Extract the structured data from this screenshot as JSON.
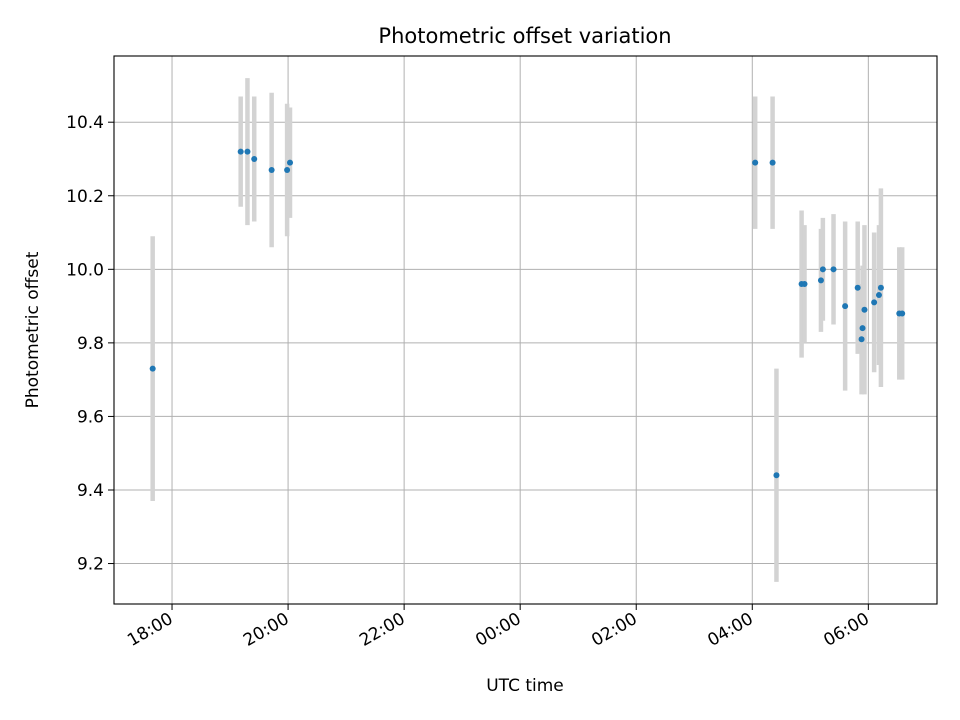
{
  "chart_data": {
    "type": "scatter",
    "title": "Photometric offset variation",
    "xlabel": "UTC time",
    "ylabel": "Photometric offset",
    "xlim": [
      "17:00",
      "07:11"
    ],
    "ylim": [
      9.09,
      10.58
    ],
    "x_ticks": [
      "18:00",
      "20:00",
      "22:00",
      "00:00",
      "02:00",
      "04:00",
      "06:00"
    ],
    "y_ticks": [
      "9.2",
      "9.4",
      "9.6",
      "9.8",
      "10.0",
      "10.2",
      "10.4"
    ],
    "grid": true,
    "colors": {
      "point": "#1f77b4",
      "errorbar": "#d3d3d3",
      "grid": "#b0b0b0"
    },
    "points": [
      {
        "x": "17:40",
        "y": 9.73,
        "err": 0.36
      },
      {
        "x": "19:11",
        "y": 10.32,
        "err": 0.15
      },
      {
        "x": "19:18",
        "y": 10.32,
        "err": 0.2
      },
      {
        "x": "19:25",
        "y": 10.3,
        "err": 0.17
      },
      {
        "x": "19:43",
        "y": 10.27,
        "err": 0.21
      },
      {
        "x": "19:59",
        "y": 10.27,
        "err": 0.18
      },
      {
        "x": "20:02",
        "y": 10.29,
        "err": 0.15
      },
      {
        "x": "04:03",
        "y": 10.29,
        "err": 0.18
      },
      {
        "x": "04:21",
        "y": 10.29,
        "err": 0.18
      },
      {
        "x": "04:25",
        "y": 9.44,
        "err": 0.29
      },
      {
        "x": "04:51",
        "y": 9.96,
        "err": 0.2
      },
      {
        "x": "04:54",
        "y": 9.96,
        "err": 0.16
      },
      {
        "x": "05:11",
        "y": 9.97,
        "err": 0.14
      },
      {
        "x": "05:13",
        "y": 10.0,
        "err": 0.14
      },
      {
        "x": "05:24",
        "y": 10.0,
        "err": 0.15
      },
      {
        "x": "05:36",
        "y": 9.9,
        "err": 0.23
      },
      {
        "x": "05:49",
        "y": 9.95,
        "err": 0.18
      },
      {
        "x": "05:53",
        "y": 9.81,
        "err": 0.15
      },
      {
        "x": "05:54",
        "y": 9.84,
        "err": 0.17
      },
      {
        "x": "05:56",
        "y": 9.89,
        "err": 0.23
      },
      {
        "x": "06:06",
        "y": 9.91,
        "err": 0.19
      },
      {
        "x": "06:11",
        "y": 9.93,
        "err": 0.19
      },
      {
        "x": "06:13",
        "y": 9.95,
        "err": 0.27
      },
      {
        "x": "06:32",
        "y": 9.88,
        "err": 0.18
      },
      {
        "x": "06:35",
        "y": 9.88,
        "err": 0.18
      }
    ]
  }
}
